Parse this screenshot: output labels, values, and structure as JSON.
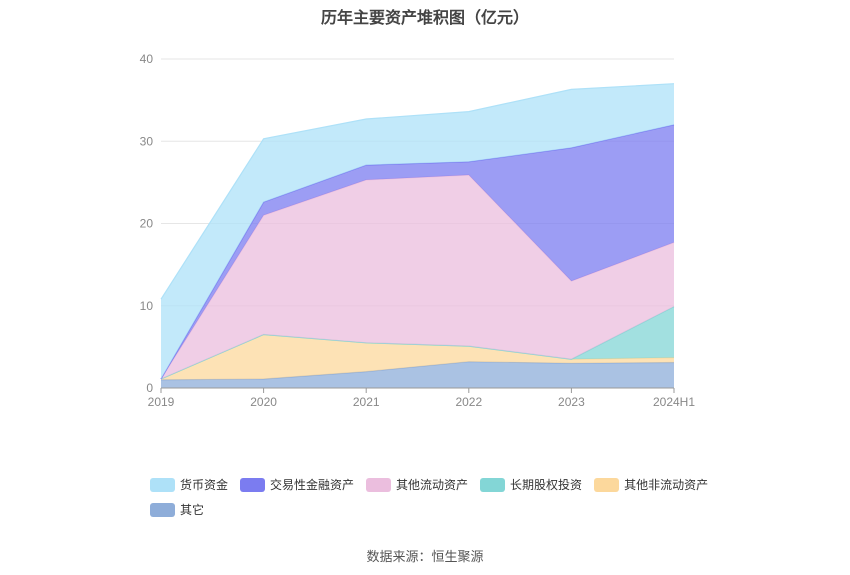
{
  "chart_data": {
    "type": "area",
    "stacked": true,
    "title": "历年主要资产堆积图（亿元）",
    "categories": [
      "2019",
      "2020",
      "2021",
      "2022",
      "2023",
      "2024H1"
    ],
    "ylim": [
      0,
      40
    ],
    "yticks": [
      0,
      10,
      20,
      30,
      40
    ],
    "grid": true,
    "legend_position": "bottom",
    "series": [
      {
        "name": "其它",
        "color": "#8eadd9",
        "values": [
          1.0,
          1.1,
          2.0,
          3.2,
          3.0,
          3.1
        ]
      },
      {
        "name": "其他非流动资产",
        "color": "#fcd89c",
        "values": [
          0.1,
          5.4,
          3.5,
          1.9,
          0.5,
          0.6
        ]
      },
      {
        "name": "长期股权投资",
        "color": "#83d6d6",
        "values": [
          0.0,
          0.0,
          0.0,
          0.0,
          0.0,
          6.2
        ]
      },
      {
        "name": "其他流动资产",
        "color": "#ebbede",
        "values": [
          0.0,
          14.5,
          19.8,
          20.8,
          9.5,
          7.8
        ]
      },
      {
        "name": "交易性金融资产",
        "color": "#7b7cf0",
        "values": [
          0.0,
          1.6,
          1.8,
          1.6,
          16.2,
          14.3
        ]
      },
      {
        "name": "货币资金",
        "color": "#aee1f8",
        "values": [
          9.7,
          7.7,
          5.6,
          6.1,
          7.1,
          5.0
        ]
      }
    ],
    "legend_order": [
      "货币资金",
      "交易性金融资产",
      "其他流动资产",
      "长期股权投资",
      "其他非流动资产",
      "其它"
    ],
    "source": "数据来源：恒生聚源"
  }
}
